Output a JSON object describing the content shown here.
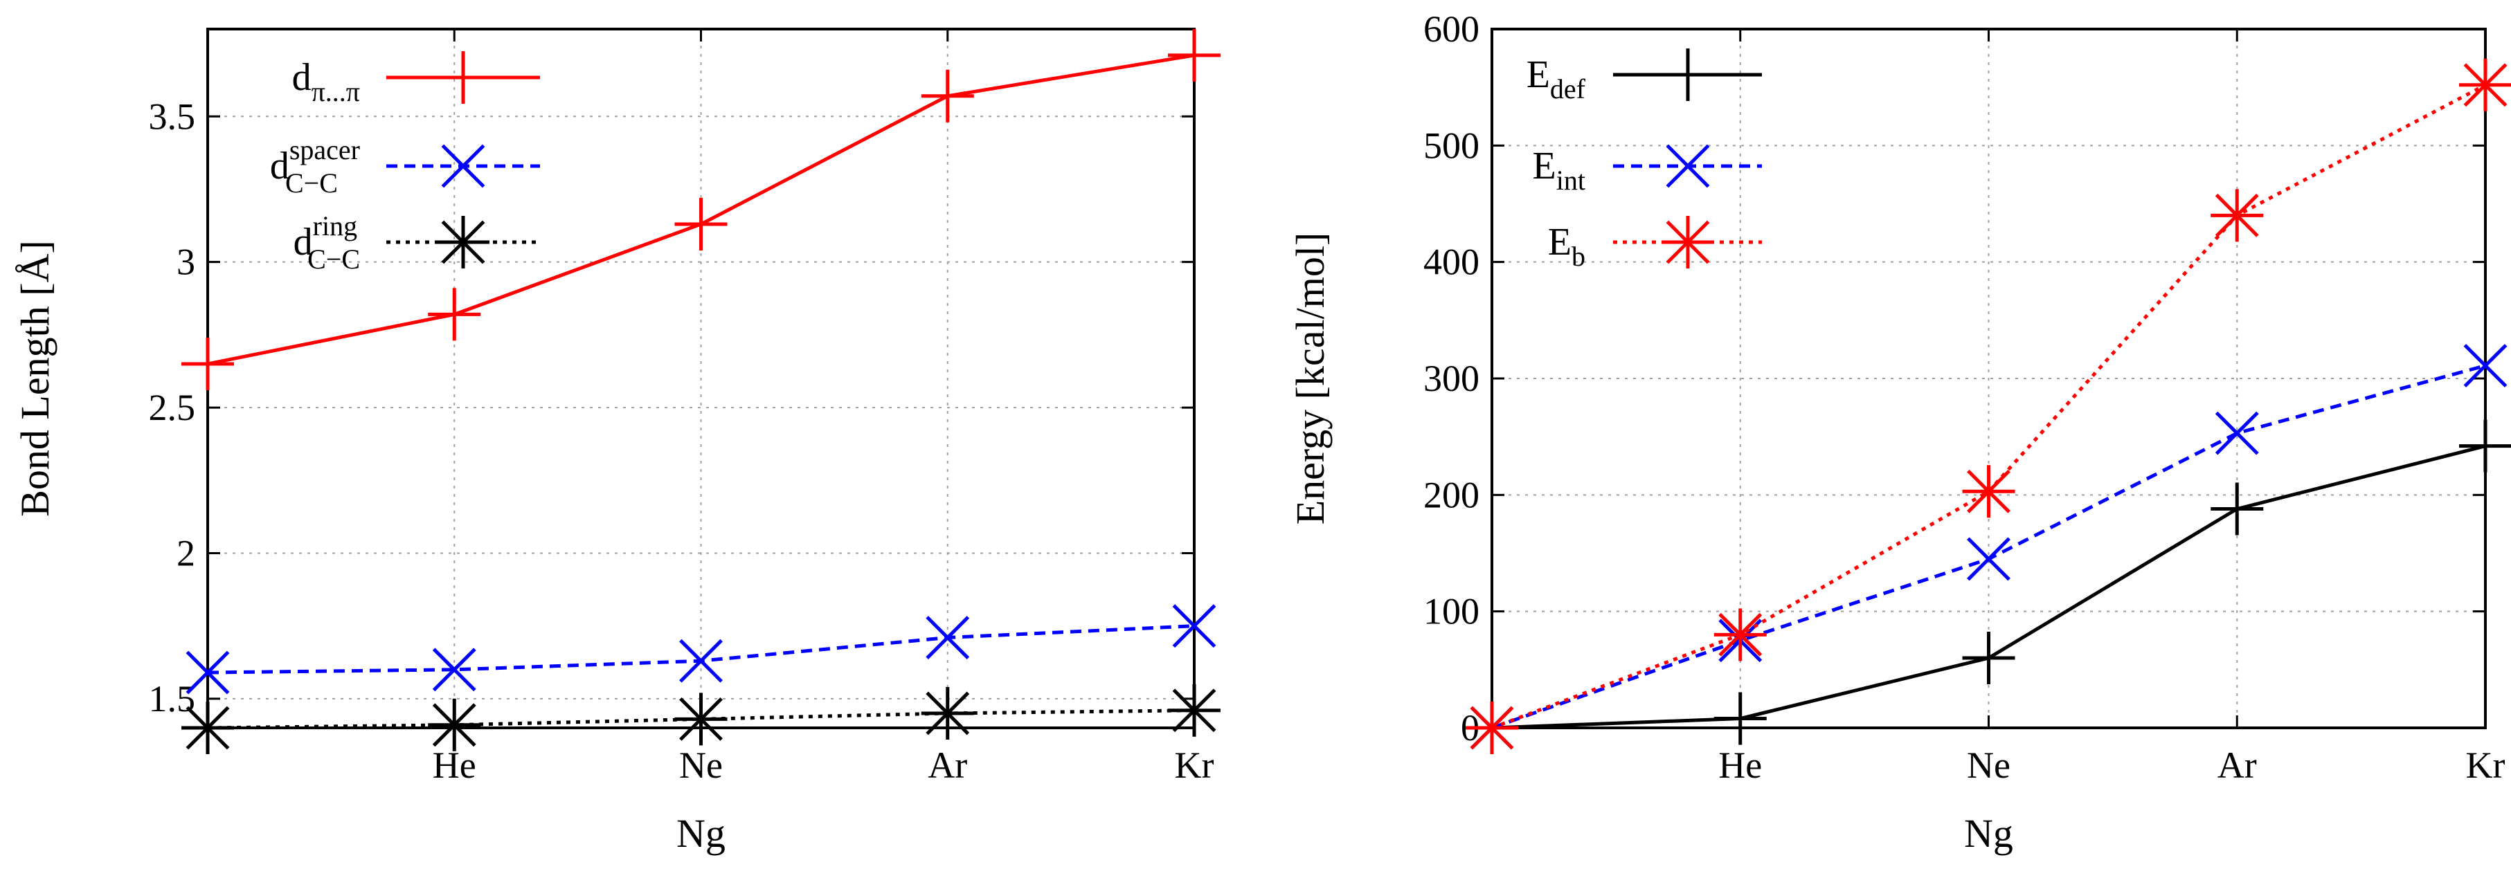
{
  "chart_data": [
    {
      "type": "line",
      "xlabel": "Ng",
      "ylabel": "Bond Length [Å]",
      "categories": [
        "",
        "He",
        "Ne",
        "Ar",
        "Kr"
      ],
      "ylim": [
        1.4,
        3.8
      ],
      "yticks": [
        "1.5",
        "2",
        "2.5",
        "3",
        "3.5"
      ],
      "grid": true,
      "legend_position": "top-left",
      "series": [
        {
          "name": "dπ...π",
          "base": "d",
          "sub": "π...π",
          "sup": "",
          "color": "#ff0000",
          "dash": "solid",
          "marker": "plus",
          "values": [
            2.65,
            2.82,
            3.13,
            3.57,
            3.71
          ]
        },
        {
          "name": "dC−C spacer",
          "base": "d",
          "sub": "C−C",
          "sup": "spacer",
          "color": "#0000ff",
          "dash": "dashed",
          "marker": "x",
          "values": [
            1.59,
            1.6,
            1.63,
            1.71,
            1.75
          ]
        },
        {
          "name": "dC−C ring",
          "base": "d",
          "sub": "C−C",
          "sup": "ring",
          "color": "#000000",
          "dash": "dotted",
          "marker": "star",
          "values": [
            1.4,
            1.41,
            1.43,
            1.45,
            1.46
          ]
        }
      ]
    },
    {
      "type": "line",
      "xlabel": "Ng",
      "ylabel": "Energy [kcal/mol]",
      "categories": [
        "",
        "He",
        "Ne",
        "Ar",
        "Kr"
      ],
      "ylim": [
        0,
        600
      ],
      "yticks": [
        "0",
        "100",
        "200",
        "300",
        "400",
        "500",
        "600"
      ],
      "grid": true,
      "legend_position": "top-left",
      "series": [
        {
          "name": "Edef",
          "base": "E",
          "sub": "def",
          "sup": "",
          "color": "#000000",
          "dash": "solid",
          "marker": "plus",
          "values": [
            0,
            8,
            60,
            188,
            242
          ]
        },
        {
          "name": "Eint",
          "base": "E",
          "sub": "int",
          "sup": "",
          "color": "#0000ff",
          "dash": "dashed",
          "marker": "x",
          "values": [
            0,
            75,
            145,
            253,
            311
          ]
        },
        {
          "name": "Eb",
          "base": "E",
          "sub": "b",
          "sup": "",
          "color": "#ff0000",
          "dash": "dotted",
          "marker": "star",
          "values": [
            0,
            80,
            203,
            440,
            552
          ]
        }
      ]
    }
  ]
}
